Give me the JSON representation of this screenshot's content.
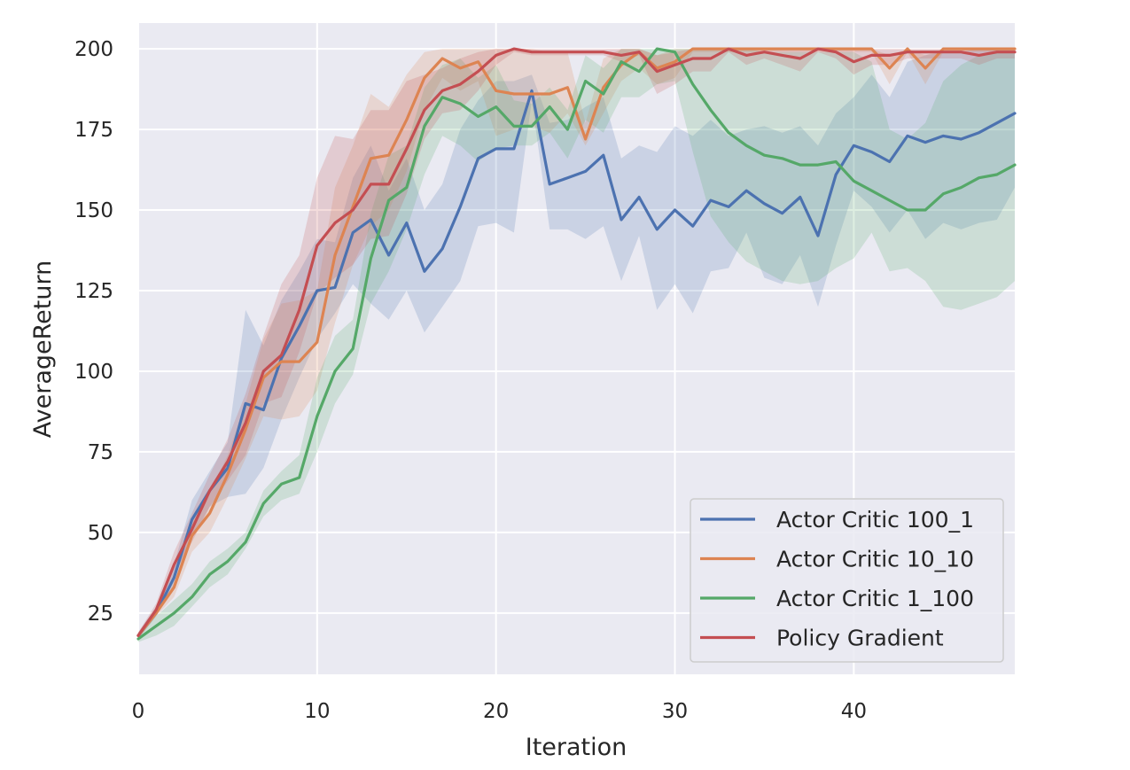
{
  "chart_data": {
    "type": "line",
    "title": "",
    "xlabel": "Iteration",
    "ylabel": "AverageReturn",
    "xlim": [
      0,
      49
    ],
    "ylim": [
      6,
      208
    ],
    "xticks": [
      0,
      10,
      20,
      30,
      40
    ],
    "yticks": [
      25,
      50,
      75,
      100,
      125,
      150,
      175,
      200
    ],
    "grid": true,
    "legend_position": "lower-right",
    "shaded_band": "min-max range per series",
    "series": [
      {
        "name": "Actor Critic 100_1",
        "color": "#4c72b0",
        "mean": [
          18,
          25,
          36,
          54,
          63,
          70,
          90,
          88,
          104,
          114,
          125,
          126,
          143,
          147,
          136,
          146,
          131,
          138,
          151,
          166,
          169,
          169,
          187,
          158,
          160,
          162,
          167,
          147,
          154,
          144,
          150,
          145,
          153,
          151,
          156,
          152,
          149,
          154,
          142,
          161,
          170,
          168,
          165,
          173,
          171,
          173,
          172,
          174,
          177,
          180
        ],
        "lower": [
          17,
          24,
          33,
          48,
          58,
          61,
          62,
          70,
          85,
          98,
          110,
          118,
          127,
          121,
          116,
          125,
          112,
          120,
          128,
          145,
          146,
          143,
          184,
          144,
          144,
          141,
          145,
          128,
          142,
          119,
          127,
          118,
          131,
          132,
          143,
          129,
          127,
          136,
          120,
          139,
          156,
          151,
          143,
          150,
          141,
          146,
          144,
          146,
          147,
          157
        ],
        "upper": [
          19,
          27,
          40,
          60,
          69,
          78,
          119,
          108,
          122,
          131,
          141,
          140,
          160,
          170,
          156,
          166,
          150,
          158,
          175,
          184,
          190,
          190,
          192,
          177,
          178,
          182,
          185,
          166,
          170,
          168,
          176,
          173,
          178,
          173,
          175,
          176,
          174,
          176,
          170,
          180,
          185,
          192,
          185,
          196,
          198,
          199,
          199,
          200,
          200,
          200
        ]
      },
      {
        "name": "Actor Critic 10_10",
        "color": "#dd8452",
        "mean": [
          18,
          25,
          33,
          49,
          56,
          68,
          82,
          98,
          103,
          103,
          109,
          136,
          151,
          166,
          167,
          178,
          191,
          197,
          194,
          196,
          187,
          186,
          186,
          186,
          188,
          172,
          188,
          195,
          199,
          194,
          196,
          200,
          200,
          200,
          200,
          200,
          200,
          200,
          200,
          200,
          200,
          200,
          194,
          200,
          194,
          200,
          200,
          200,
          200,
          200
        ],
        "lower": [
          17,
          24,
          30,
          44,
          50,
          61,
          73,
          86,
          85,
          86,
          94,
          115,
          133,
          145,
          150,
          162,
          181,
          191,
          187,
          190,
          173,
          175,
          176,
          174,
          180,
          170,
          180,
          190,
          194,
          189,
          191,
          199,
          199,
          199,
          199,
          199,
          199,
          199,
          199,
          199,
          199,
          199,
          189,
          199,
          189,
          199,
          199,
          199,
          199,
          199
        ],
        "upper": [
          19,
          26,
          36,
          54,
          62,
          74,
          90,
          110,
          121,
          122,
          125,
          157,
          170,
          186,
          182,
          192,
          199,
          200,
          200,
          200,
          200,
          200,
          200,
          199,
          199,
          177,
          197,
          200,
          200,
          198,
          200,
          200,
          200,
          200,
          200,
          200,
          200,
          200,
          200,
          200,
          200,
          200,
          198,
          200,
          198,
          200,
          200,
          200,
          200,
          200
        ]
      },
      {
        "name": "Actor Critic 1_100",
        "color": "#55a868",
        "mean": [
          17,
          21,
          25,
          30,
          37,
          41,
          47,
          59,
          65,
          67,
          86,
          100,
          107,
          135,
          153,
          157,
          176,
          185,
          183,
          179,
          182,
          176,
          176,
          182,
          175,
          190,
          186,
          196,
          193,
          200,
          199,
          189,
          181,
          174,
          170,
          167,
          166,
          164,
          164,
          165,
          159,
          156,
          153,
          150,
          150,
          155,
          157,
          160,
          161,
          164
        ],
        "lower": [
          16,
          18,
          21,
          27,
          33,
          37,
          45,
          55,
          60,
          62,
          75,
          90,
          99,
          121,
          131,
          144,
          161,
          173,
          170,
          165,
          169,
          170,
          170,
          174,
          166,
          178,
          174,
          185,
          185,
          189,
          190,
          168,
          148,
          140,
          134,
          131,
          128,
          127,
          128,
          132,
          135,
          143,
          131,
          132,
          128,
          120,
          119,
          121,
          123,
          128
        ],
        "upper": [
          18,
          24,
          29,
          34,
          41,
          45,
          50,
          63,
          69,
          74,
          98,
          111,
          116,
          149,
          167,
          170,
          188,
          195,
          197,
          191,
          195,
          184,
          183,
          188,
          181,
          198,
          194,
          200,
          200,
          200,
          200,
          200,
          200,
          200,
          200,
          199,
          199,
          199,
          199,
          199,
          199,
          196,
          175,
          172,
          177,
          190,
          195,
          198,
          199,
          199
        ]
      },
      {
        "name": "Policy Gradient",
        "color": "#c44e52",
        "mean": [
          18,
          26,
          40,
          51,
          63,
          72,
          84,
          100,
          105,
          119,
          139,
          146,
          150,
          158,
          158,
          169,
          181,
          187,
          189,
          193,
          198,
          200,
          199,
          199,
          199,
          199,
          199,
          198,
          199,
          193,
          195,
          197,
          197,
          200,
          198,
          199,
          198,
          197,
          200,
          199,
          196,
          198,
          198,
          199,
          199,
          199,
          199,
          198,
          199,
          199
        ],
        "lower": [
          17,
          25,
          37,
          47,
          58,
          66,
          74,
          90,
          92,
          106,
          124,
          129,
          133,
          141,
          142,
          155,
          172,
          180,
          181,
          187,
          195,
          199,
          198,
          198,
          198,
          198,
          198,
          196,
          198,
          186,
          189,
          193,
          193,
          199,
          195,
          197,
          195,
          193,
          199,
          197,
          192,
          195,
          195,
          197,
          197,
          197,
          197,
          195,
          197,
          197
        ],
        "upper": [
          19,
          28,
          44,
          56,
          68,
          79,
          93,
          111,
          127,
          136,
          160,
          173,
          172,
          181,
          181,
          190,
          192,
          194,
          197,
          199,
          200,
          200,
          200,
          200,
          200,
          200,
          200,
          200,
          200,
          198,
          199,
          200,
          200,
          200,
          200,
          200,
          200,
          200,
          200,
          200,
          200,
          200,
          200,
          200,
          200,
          200,
          200,
          200,
          200,
          200
        ]
      }
    ]
  }
}
